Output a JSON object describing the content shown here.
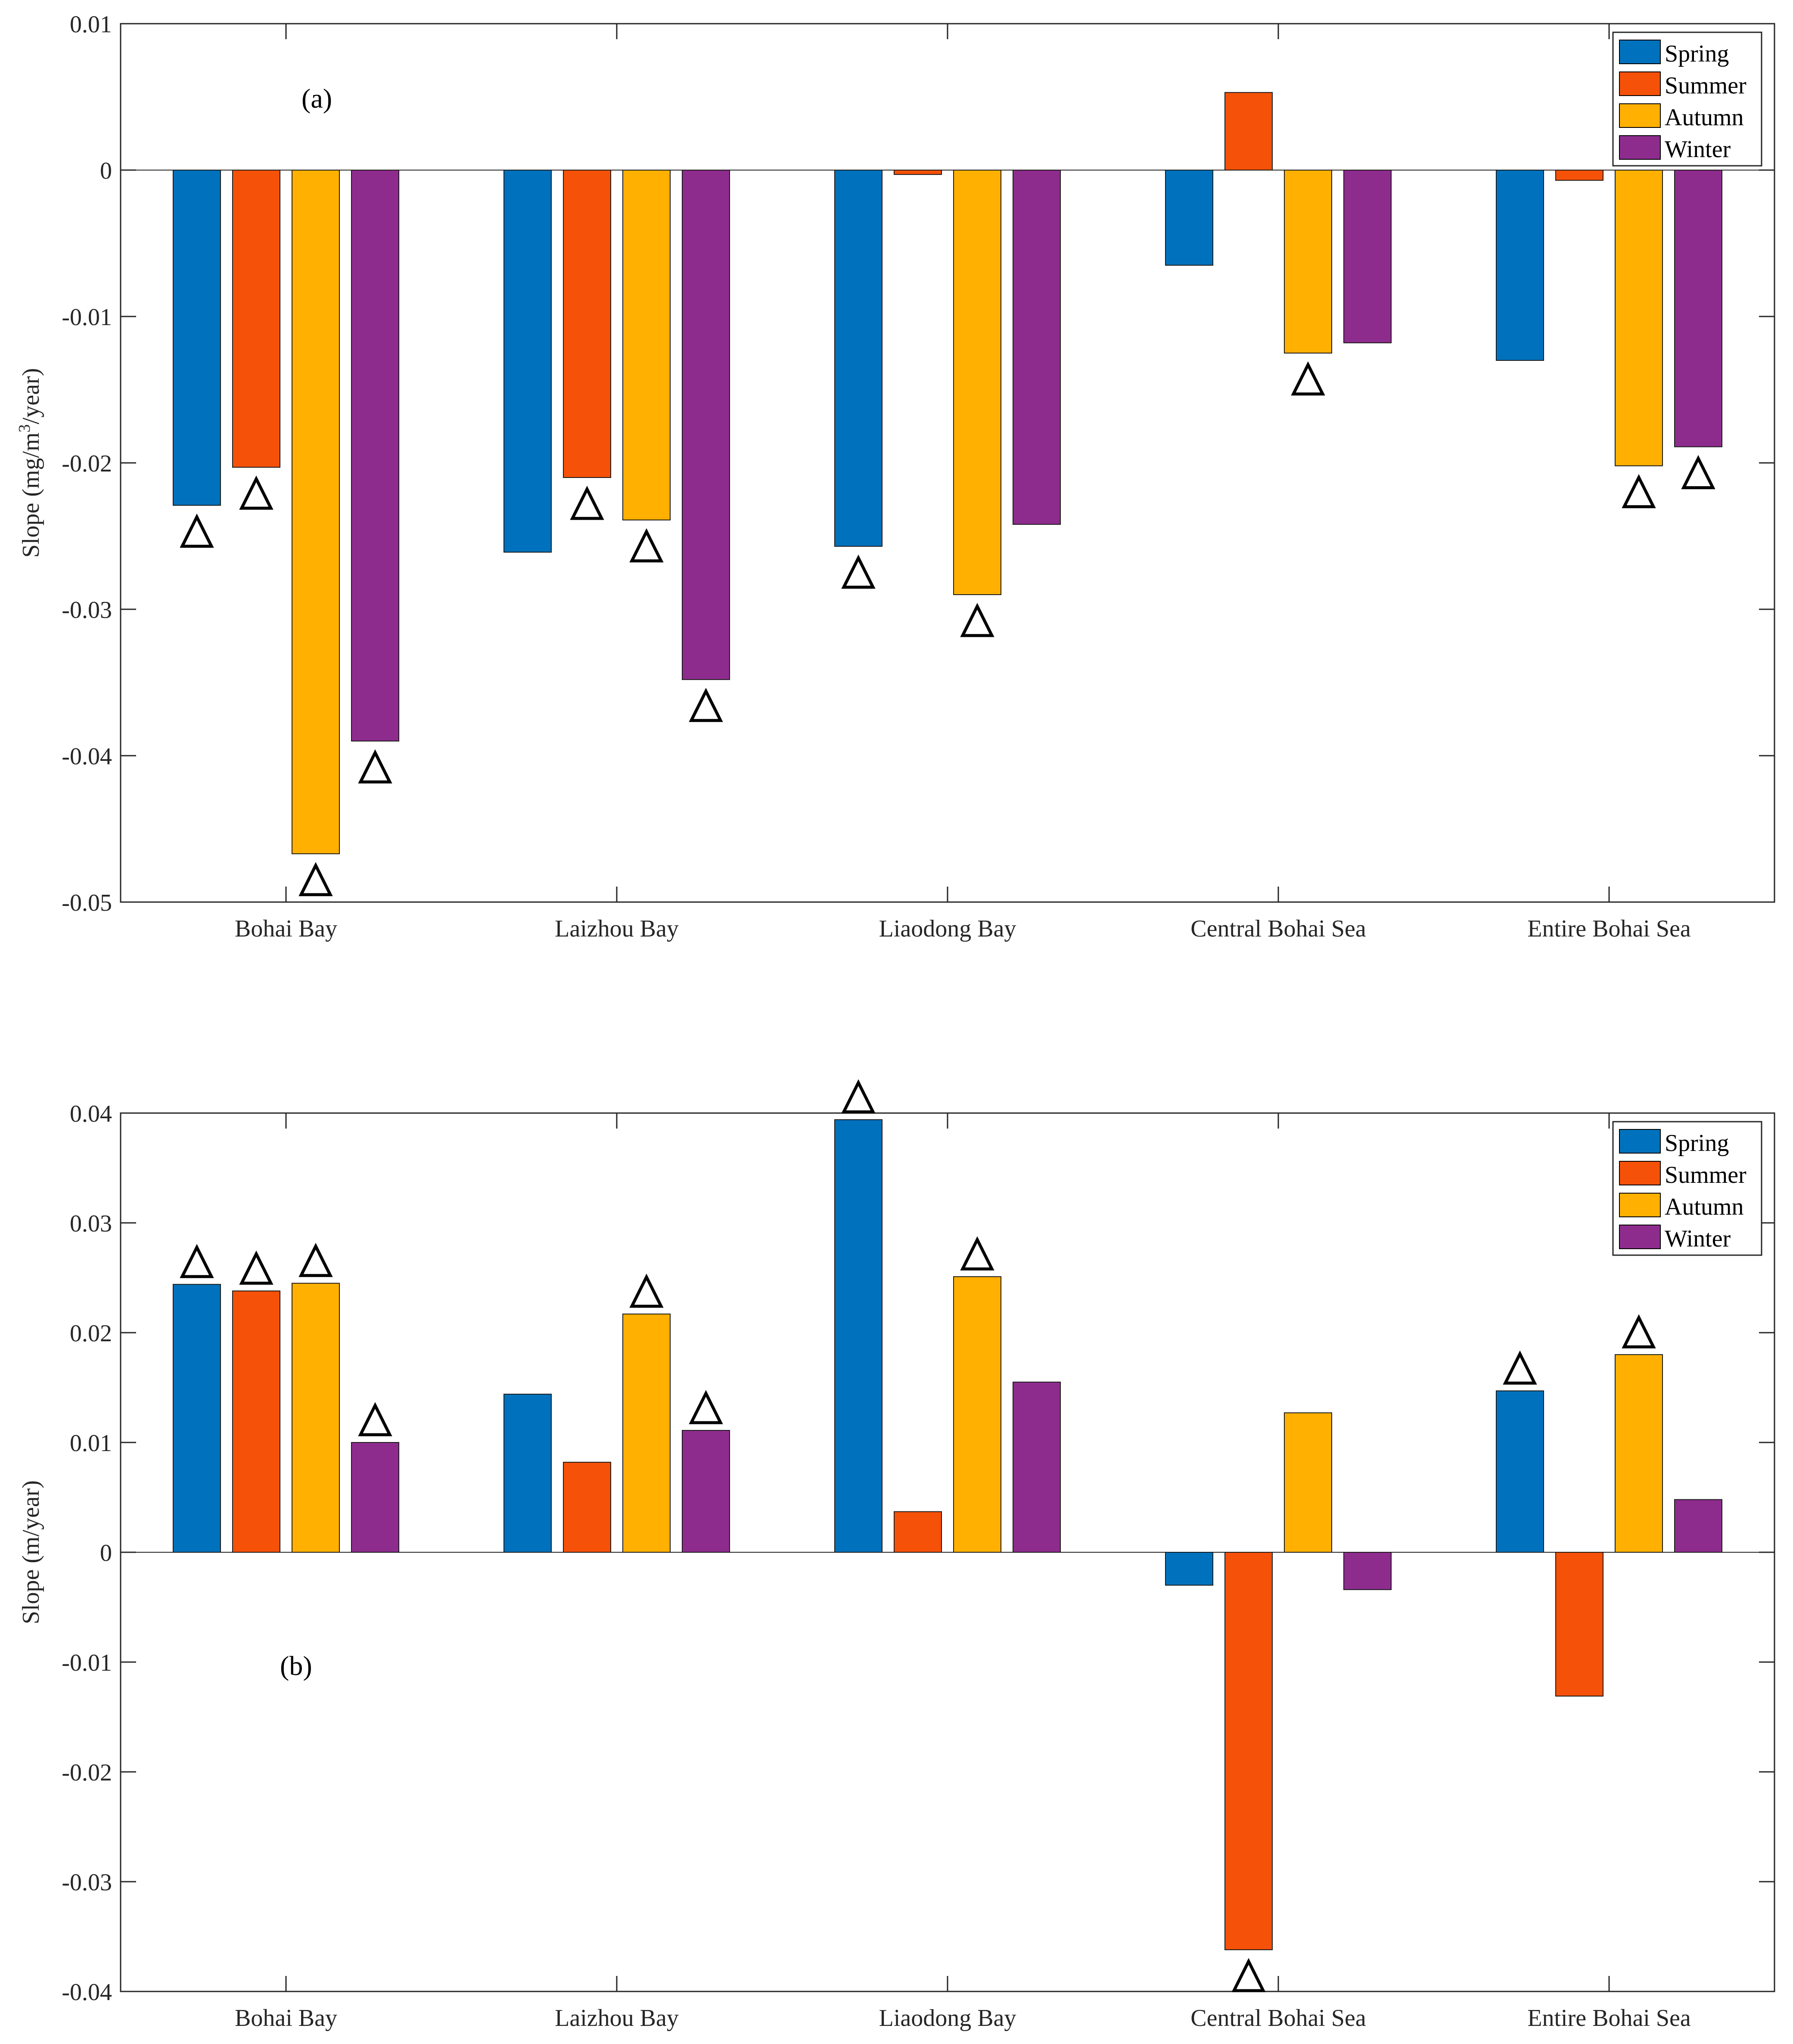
{
  "chart_data": [
    {
      "type": "bar",
      "panel_label": "(a)",
      "ylabel_prefix": "Slope (mg/m",
      "ylabel_sup": "3",
      "ylabel_suffix": "/year)",
      "ylim": [
        -0.05,
        0.01
      ],
      "yticks": [
        0.01,
        0,
        -0.01,
        -0.02,
        -0.03,
        -0.04,
        -0.05
      ],
      "ytick_labels": [
        "0.01",
        "0",
        "-0.01",
        "-0.02",
        "-0.03",
        "-0.04",
        "-0.05"
      ],
      "categories": [
        "Bohai Bay",
        "Laizhou Bay",
        "Liaodong Bay",
        "Central Bohai Sea",
        "Entire Bohai Sea"
      ],
      "legend_position": "top-right",
      "series": [
        {
          "name": "Spring",
          "color": "#0072BD",
          "values": [
            -0.0229,
            -0.0261,
            -0.0257,
            -0.0065,
            -0.013
          ],
          "significant": [
            true,
            false,
            true,
            false,
            false
          ]
        },
        {
          "name": "Summer",
          "color": "#F55109",
          "values": [
            -0.0203,
            -0.021,
            -0.0003,
            0.0053,
            -0.0007
          ],
          "significant": [
            true,
            true,
            false,
            false,
            false
          ]
        },
        {
          "name": "Autumn",
          "color": "#FFB000",
          "values": [
            -0.0467,
            -0.0239,
            -0.029,
            -0.0125,
            -0.0202
          ],
          "significant": [
            true,
            true,
            true,
            true,
            true
          ]
        },
        {
          "name": "Winter",
          "color": "#8E2C8E",
          "values": [
            -0.039,
            -0.0348,
            -0.0242,
            -0.0118,
            -0.0189
          ],
          "significant": [
            true,
            true,
            false,
            false,
            true
          ]
        }
      ]
    },
    {
      "type": "bar",
      "panel_label": "(b)",
      "ylabel_prefix": "Slope (m/year)",
      "ylabel_sup": "",
      "ylabel_suffix": "",
      "ylim": [
        -0.04,
        0.04
      ],
      "yticks": [
        0.04,
        0.03,
        0.02,
        0.01,
        0,
        -0.01,
        -0.02,
        -0.03,
        -0.04
      ],
      "ytick_labels": [
        "0.04",
        "0.03",
        "0.02",
        "0.01",
        "0",
        "-0.01",
        "-0.02",
        "-0.03",
        "-0.04"
      ],
      "categories": [
        "Bohai Bay",
        "Laizhou Bay",
        "Liaodong Bay",
        "Central Bohai Sea",
        "Entire Bohai Sea"
      ],
      "legend_position": "top-right",
      "series": [
        {
          "name": "Spring",
          "color": "#0072BD",
          "values": [
            0.0244,
            0.0144,
            0.0394,
            -0.003,
            0.0147
          ],
          "significant": [
            true,
            false,
            true,
            false,
            true
          ]
        },
        {
          "name": "Summer",
          "color": "#F55109",
          "values": [
            0.0238,
            0.0082,
            0.0037,
            -0.0362,
            -0.0131
          ],
          "significant": [
            true,
            false,
            false,
            true,
            false
          ]
        },
        {
          "name": "Autumn",
          "color": "#FFB000",
          "values": [
            0.0245,
            0.0217,
            0.0251,
            0.0127,
            0.018
          ],
          "significant": [
            true,
            true,
            true,
            false,
            true
          ]
        },
        {
          "name": "Winter",
          "color": "#8E2C8E",
          "values": [
            0.01,
            0.0111,
            0.0155,
            -0.0034,
            0.0048
          ],
          "significant": [
            true,
            true,
            false,
            false,
            false
          ]
        }
      ]
    }
  ]
}
